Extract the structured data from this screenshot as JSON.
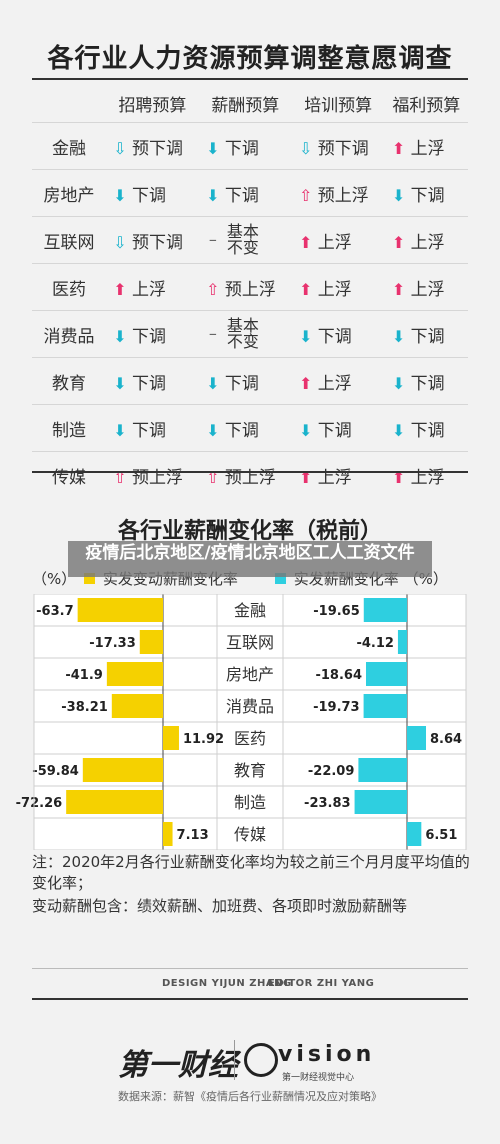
{
  "survey": {
    "title": "各行业人力资源预算调整意愿调查",
    "headers": [
      "招聘预算",
      "薪酬预算",
      "培训预算",
      "福利预算"
    ],
    "rows": [
      {
        "industry": "金融",
        "cells": [
          {
            "d": "down-hollow",
            "t": "预下调"
          },
          {
            "d": "down-solid",
            "t": "下调"
          },
          {
            "d": "down-hollow",
            "t": "预下调"
          },
          {
            "d": "up-solid",
            "t": "上浮"
          }
        ]
      },
      {
        "industry": "房地产",
        "cells": [
          {
            "d": "down-solid",
            "t": "下调"
          },
          {
            "d": "down-solid",
            "t": "下调"
          },
          {
            "d": "up-hollow",
            "t": "预上浮"
          },
          {
            "d": "down-solid",
            "t": "下调"
          }
        ]
      },
      {
        "industry": "互联网",
        "cells": [
          {
            "d": "down-hollow",
            "t": "预下调"
          },
          {
            "d": "flat",
            "t": "基本\n不变"
          },
          {
            "d": "up-solid",
            "t": "上浮"
          },
          {
            "d": "up-solid",
            "t": "上浮"
          }
        ]
      },
      {
        "industry": "医药",
        "cells": [
          {
            "d": "up-solid",
            "t": "上浮"
          },
          {
            "d": "up-hollow",
            "t": "预上浮"
          },
          {
            "d": "up-solid",
            "t": "上浮"
          },
          {
            "d": "up-solid",
            "t": "上浮"
          }
        ]
      },
      {
        "industry": "消费品",
        "cells": [
          {
            "d": "down-solid",
            "t": "下调"
          },
          {
            "d": "flat",
            "t": "基本\n不变"
          },
          {
            "d": "down-solid",
            "t": "下调"
          },
          {
            "d": "down-solid",
            "t": "下调"
          }
        ]
      },
      {
        "industry": "教育",
        "cells": [
          {
            "d": "down-solid",
            "t": "下调"
          },
          {
            "d": "down-solid",
            "t": "下调"
          },
          {
            "d": "up-solid",
            "t": "上浮"
          },
          {
            "d": "down-solid",
            "t": "下调"
          }
        ]
      },
      {
        "industry": "制造",
        "cells": [
          {
            "d": "down-solid",
            "t": "下调"
          },
          {
            "d": "down-solid",
            "t": "下调"
          },
          {
            "d": "down-solid",
            "t": "下调"
          },
          {
            "d": "down-solid",
            "t": "下调"
          }
        ]
      },
      {
        "industry": "传媒",
        "cells": [
          {
            "d": "up-hollow",
            "t": "预上浮"
          },
          {
            "d": "up-hollow",
            "t": "预上浮"
          },
          {
            "d": "up-solid",
            "t": "上浮"
          },
          {
            "d": "up-solid",
            "t": "上浮"
          }
        ]
      }
    ]
  },
  "chart_data": {
    "type": "bar",
    "title": "各行业薪酬变化率（税前）",
    "categories": [
      "金融",
      "互联网",
      "房地产",
      "消费品",
      "医药",
      "教育",
      "制造",
      "传媒"
    ],
    "series": [
      {
        "name": "实发变动薪酬变化率",
        "unit": "（%）",
        "color": "#f5d100",
        "values": [
          -63.7,
          -17.33,
          -41.9,
          -38.21,
          11.92,
          -59.84,
          -72.26,
          7.13
        ]
      },
      {
        "name": "实发薪酬变化率",
        "unit": "（%）",
        "color": "#2ecfe0",
        "values": [
          -19.65,
          -4.12,
          -18.64,
          -19.73,
          8.64,
          -22.09,
          -23.83,
          6.51
        ]
      }
    ]
  },
  "overlay_text": "疫情后北京地区/疫情北京地区工人工资文件",
  "notes": [
    "注：2020年2月各行业薪酬变化率均为较之前三个月月度平均值的变化率；",
    "变动薪酬包含：绩效薪酬、加班费、各项即时激励薪酬等"
  ],
  "credits": {
    "design": "DESIGN YIJUN ZHANG",
    "editor": "EDITOR ZHI YANG"
  },
  "logos": {
    "left": "第一财经",
    "right": "vision",
    "right_sub": "第一财经视觉中心"
  },
  "source": "数据来源：薪智《疫情后各行业薪酬情况及应对策略》",
  "colors": {
    "up": "#e8326e",
    "down": "#1ab3cc",
    "yellow": "#f5d100",
    "cyan": "#2ecfe0"
  }
}
